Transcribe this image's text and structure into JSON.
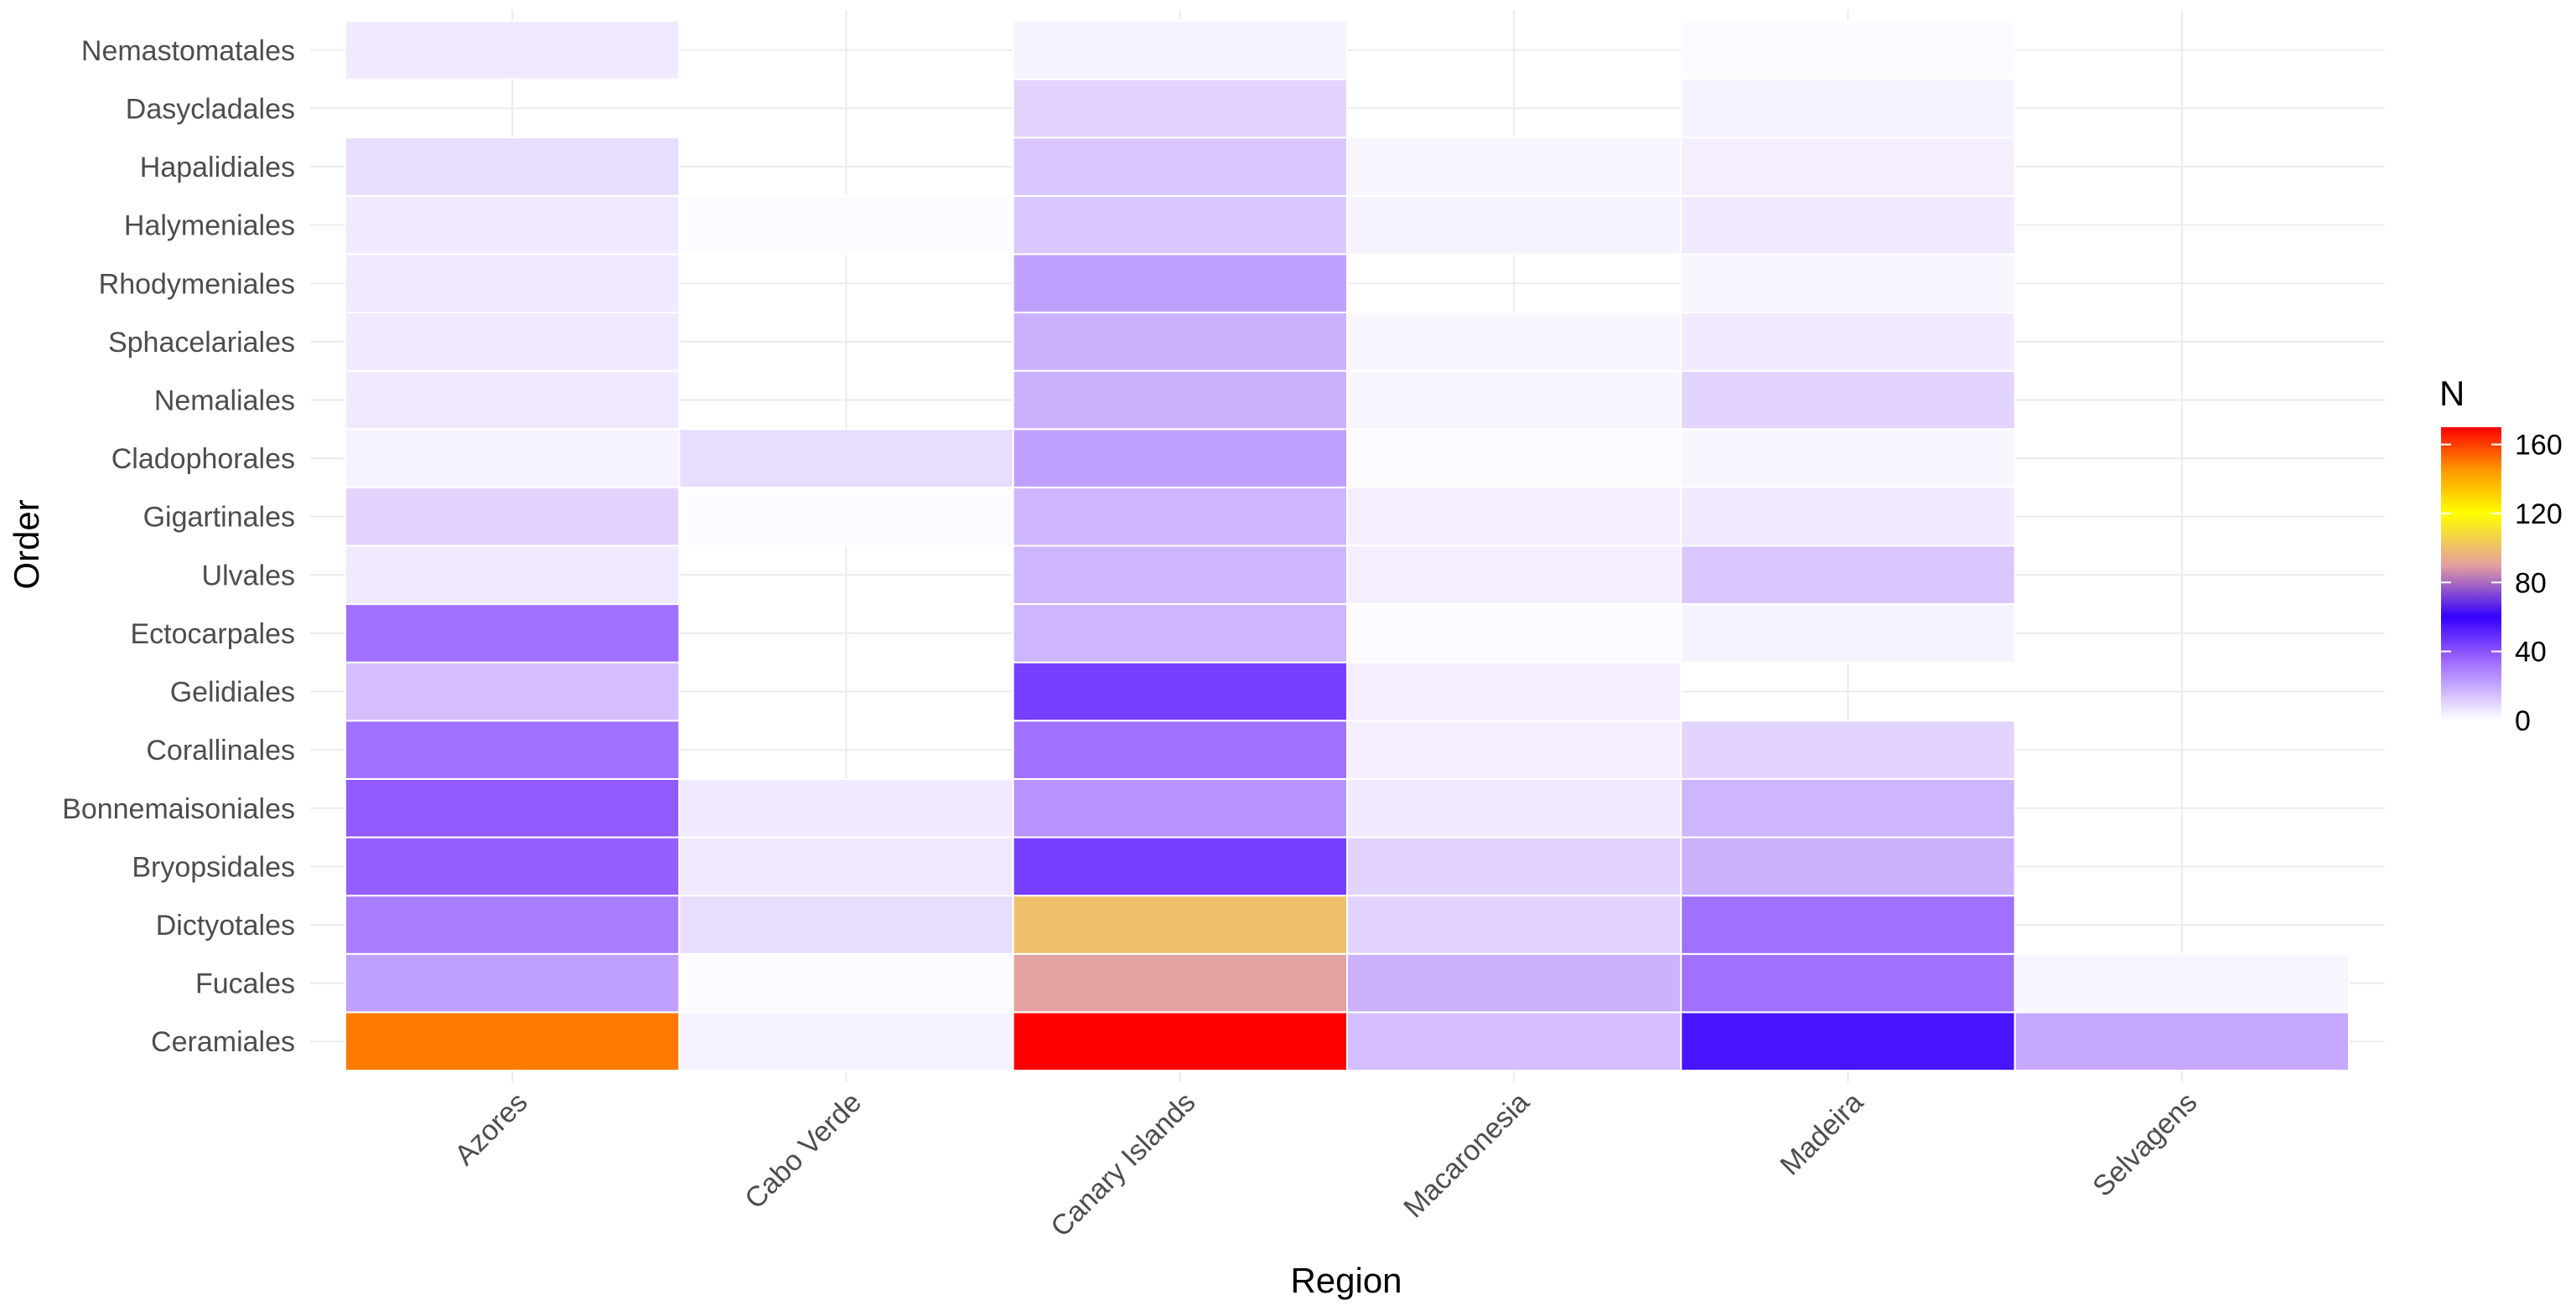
{
  "chart_data": {
    "type": "heatmap",
    "xlabel": "Region",
    "ylabel": "Order",
    "x_categories": [
      "Azores",
      "Cabo Verde",
      "Canary Islands",
      "Macaronesia",
      "Madeira",
      "Selvagens"
    ],
    "y_categories": [
      "Ceramiales",
      "Fucales",
      "Dictyotales",
      "Bryopsidales",
      "Bonnemaisoniales",
      "Corallinales",
      "Gelidiales",
      "Ectocarpales",
      "Ulvales",
      "Gigartinales",
      "Cladophorales",
      "Nemaliales",
      "Sphacelariales",
      "Rhodymeniales",
      "Halymeniales",
      "Hapalidiales",
      "Dasycladales",
      "Nemastomatales"
    ],
    "values": {
      "Ceramiales": [
        150,
        3,
        170,
        15,
        55,
        20
      ],
      "Fucales": [
        22,
        1,
        90,
        18,
        33,
        2
      ],
      "Dictyotales": [
        30,
        8,
        100,
        10,
        33,
        null
      ],
      "Bryopsidales": [
        37,
        5,
        45,
        10,
        18,
        null
      ],
      "Bonnemaisoniales": [
        38,
        5,
        25,
        5,
        17,
        null
      ],
      "Corallinales": [
        33,
        null,
        33,
        4,
        10,
        null
      ],
      "Gelidiales": [
        15,
        null,
        45,
        4,
        null,
        null
      ],
      "Ectocarpales": [
        33,
        null,
        17,
        1,
        3,
        null
      ],
      "Ulvales": [
        5,
        null,
        17,
        4,
        13,
        null
      ],
      "Gigartinales": [
        10,
        1,
        17,
        4,
        5,
        null
      ],
      "Cladophorales": [
        3,
        8,
        22,
        1,
        2,
        null
      ],
      "Nemaliales": [
        5,
        null,
        18,
        2,
        10,
        null
      ],
      "Sphacelariales": [
        5,
        null,
        18,
        2,
        5,
        null
      ],
      "Rhodymeniales": [
        5,
        null,
        22,
        null,
        2,
        null
      ],
      "Halymeniales": [
        5,
        1,
        13,
        3,
        5,
        null
      ],
      "Hapalidiales": [
        8,
        null,
        13,
        2,
        4,
        null
      ],
      "Dasycladales": [
        null,
        null,
        10,
        null,
        3,
        null
      ],
      "Nemastomatales": [
        5,
        null,
        3,
        null,
        1,
        null
      ]
    },
    "legend": {
      "title": "N",
      "ticks": [
        0,
        40,
        80,
        120,
        160
      ],
      "range": [
        0,
        170
      ],
      "position": "right"
    },
    "color_scale": [
      {
        "value": 0,
        "color": "#ffffff"
      },
      {
        "value": 40,
        "color": "#8c52ff"
      },
      {
        "value": 60,
        "color": "#3300ff"
      },
      {
        "value": 90,
        "color": "#e5a0a0"
      },
      {
        "value": 120,
        "color": "#ffff00"
      },
      {
        "value": 145,
        "color": "#ff9900"
      },
      {
        "value": 170,
        "color": "#ff0000"
      }
    ],
    "grid": true
  }
}
